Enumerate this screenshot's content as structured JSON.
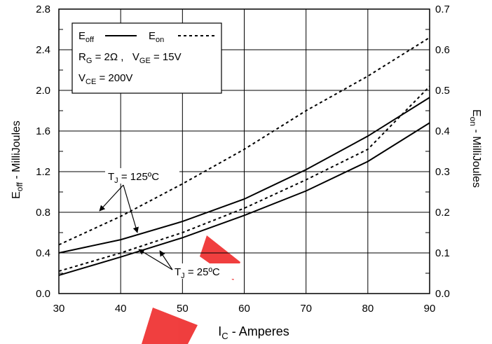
{
  "chart_data": {
    "type": "line",
    "xlabel": {
      "main": "I",
      "sub": "C",
      "rest": " - Amperes"
    },
    "ylabel_left": {
      "main": "E",
      "sub": "off",
      "rest": " - MilliJoules"
    },
    "ylabel_right": {
      "main": "E",
      "sub": "on",
      "rest": " - MilliJoules"
    },
    "xlim": [
      30,
      90
    ],
    "ylim_left": [
      0,
      2.8
    ],
    "ylim_right": [
      0,
      0.7
    ],
    "x_ticks": [
      "30",
      "40",
      "50",
      "60",
      "70",
      "80",
      "90"
    ],
    "y_left_ticks": [
      "0.0",
      "0.4",
      "0.8",
      "1.2",
      "1.6",
      "2.0",
      "2.4",
      "2.8"
    ],
    "y_right_ticks": [
      "0.0",
      "0.1",
      "0.2",
      "0.3",
      "0.4",
      "0.5",
      "0.6",
      "0.7"
    ],
    "grid": true,
    "legend": {
      "placement": "top-left",
      "entries": [
        {
          "main": "E",
          "sub": "off",
          "style": "solid"
        },
        {
          "main": "E",
          "sub": "on",
          "style": "dashed"
        }
      ],
      "conditions": [
        {
          "main": "R",
          "sub": "G",
          "rest": " = 2Ω ,   "
        },
        {
          "main": "V",
          "sub": "GE",
          "rest": " = 15V"
        }
      ],
      "condition2": {
        "main": "V",
        "sub": "CE",
        "rest": " = 200V"
      }
    },
    "annotations": [
      {
        "main": "T",
        "sub": "J",
        "rest": " = 125ºC"
      },
      {
        "main": "T",
        "sub": "J",
        "rest": " = 25ºC"
      }
    ],
    "series": [
      {
        "quantity": "Eoff",
        "condition": "TJ = 125ºC",
        "axis": "left",
        "style": "solid",
        "x": [
          30,
          40,
          50,
          60,
          70,
          80,
          90
        ],
        "y": [
          0.4,
          0.53,
          0.71,
          0.93,
          1.22,
          1.55,
          1.93
        ]
      },
      {
        "quantity": "Eoff",
        "condition": "TJ = 25ºC",
        "axis": "left",
        "style": "solid",
        "x": [
          30,
          40,
          50,
          60,
          70,
          80,
          90
        ],
        "y": [
          0.18,
          0.36,
          0.55,
          0.77,
          1.01,
          1.3,
          1.68
        ]
      },
      {
        "quantity": "Eon",
        "condition": "TJ = 125ºC",
        "axis": "right",
        "style": "dashed",
        "x": [
          30,
          40,
          50,
          60,
          70,
          80,
          90
        ],
        "y": [
          0.12,
          0.19,
          0.27,
          0.355,
          0.45,
          0.535,
          0.63
        ]
      },
      {
        "quantity": "Eon",
        "condition": "TJ = 25ºC",
        "axis": "right",
        "style": "dashed",
        "x": [
          30,
          40,
          50,
          60,
          70,
          80,
          90
        ],
        "y": [
          0.055,
          0.1,
          0.15,
          0.21,
          0.28,
          0.355,
          0.51
        ]
      }
    ]
  }
}
